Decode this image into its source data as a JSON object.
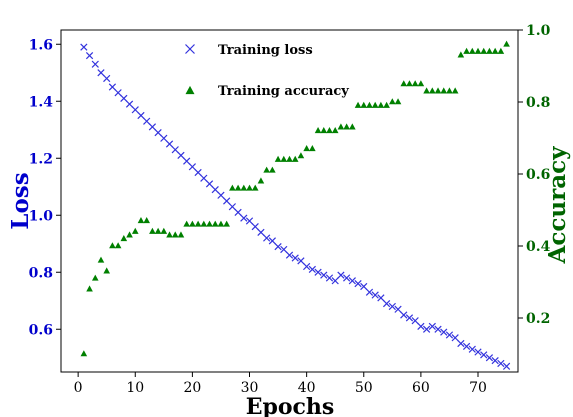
{
  "chart_data": {
    "type": "line",
    "xlabel": "Epochs",
    "ylabel_left": "Loss",
    "ylabel_right": "Accuracy",
    "xlim": [
      -3,
      77
    ],
    "ylim_left": [
      0.45,
      1.65
    ],
    "ylim_right": [
      0.05,
      1.0
    ],
    "x_ticks": [
      0,
      10,
      20,
      30,
      40,
      50,
      60,
      70
    ],
    "y_ticks_left": [
      0.6,
      0.8,
      1.0,
      1.2,
      1.4,
      1.6
    ],
    "y_ticks_right": [
      0.2,
      0.4,
      0.6,
      0.8,
      1.0
    ],
    "y_tick_labels_left": [
      "0.6",
      "0.8",
      "1.0",
      "1.2",
      "1.4",
      "1.6"
    ],
    "y_tick_labels_right": [
      "0.2",
      "0.4",
      "0.6",
      "0.8",
      "1.0"
    ],
    "legend_position": "top-center",
    "grid": false,
    "colors": {
      "loss": "#3333dd",
      "accuracy": "#008000",
      "left_axis": "#0000cc",
      "right_axis": "#006400"
    },
    "series": [
      {
        "name": "Training loss",
        "axis": "left",
        "marker": "x",
        "x": [
          1,
          2,
          3,
          4,
          5,
          6,
          7,
          8,
          9,
          10,
          11,
          12,
          13,
          14,
          15,
          16,
          17,
          18,
          19,
          20,
          21,
          22,
          23,
          24,
          25,
          26,
          27,
          28,
          29,
          30,
          31,
          32,
          33,
          34,
          35,
          36,
          37,
          38,
          39,
          40,
          41,
          42,
          43,
          44,
          45,
          46,
          47,
          48,
          49,
          50,
          51,
          52,
          53,
          54,
          55,
          56,
          57,
          58,
          59,
          60,
          61,
          62,
          63,
          64,
          65,
          66,
          67,
          68,
          69,
          70,
          71,
          72,
          73,
          74,
          75
        ],
        "values": [
          1.59,
          1.56,
          1.53,
          1.5,
          1.48,
          1.45,
          1.43,
          1.41,
          1.39,
          1.37,
          1.35,
          1.33,
          1.31,
          1.29,
          1.27,
          1.25,
          1.23,
          1.21,
          1.19,
          1.17,
          1.15,
          1.13,
          1.11,
          1.09,
          1.07,
          1.05,
          1.03,
          1.01,
          0.99,
          0.98,
          0.96,
          0.94,
          0.92,
          0.91,
          0.89,
          0.88,
          0.86,
          0.85,
          0.84,
          0.82,
          0.81,
          0.8,
          0.79,
          0.78,
          0.77,
          0.79,
          0.78,
          0.77,
          0.76,
          0.75,
          0.73,
          0.72,
          0.71,
          0.69,
          0.68,
          0.67,
          0.65,
          0.64,
          0.63,
          0.61,
          0.6,
          0.61,
          0.6,
          0.59,
          0.58,
          0.57,
          0.55,
          0.54,
          0.53,
          0.52,
          0.51,
          0.5,
          0.49,
          0.48,
          0.47
        ]
      },
      {
        "name": "Training accuracy",
        "axis": "right",
        "marker": "triangle",
        "x": [
          1,
          2,
          3,
          4,
          5,
          6,
          7,
          8,
          9,
          10,
          11,
          12,
          13,
          14,
          15,
          16,
          17,
          18,
          19,
          20,
          21,
          22,
          23,
          24,
          25,
          26,
          27,
          28,
          29,
          30,
          31,
          32,
          33,
          34,
          35,
          36,
          37,
          38,
          39,
          40,
          41,
          42,
          43,
          44,
          45,
          46,
          47,
          48,
          49,
          50,
          51,
          52,
          53,
          54,
          55,
          56,
          57,
          58,
          59,
          60,
          61,
          62,
          63,
          64,
          65,
          66,
          67,
          68,
          69,
          70,
          71,
          72,
          73,
          74,
          75
        ],
        "values": [
          0.1,
          0.28,
          0.31,
          0.36,
          0.33,
          0.4,
          0.4,
          0.42,
          0.43,
          0.44,
          0.47,
          0.47,
          0.44,
          0.44,
          0.44,
          0.43,
          0.43,
          0.43,
          0.46,
          0.46,
          0.46,
          0.46,
          0.46,
          0.46,
          0.46,
          0.46,
          0.56,
          0.56,
          0.56,
          0.56,
          0.56,
          0.58,
          0.61,
          0.61,
          0.64,
          0.64,
          0.64,
          0.64,
          0.65,
          0.67,
          0.67,
          0.72,
          0.72,
          0.72,
          0.72,
          0.73,
          0.73,
          0.73,
          0.79,
          0.79,
          0.79,
          0.79,
          0.79,
          0.79,
          0.8,
          0.8,
          0.85,
          0.85,
          0.85,
          0.85,
          0.83,
          0.83,
          0.83,
          0.83,
          0.83,
          0.83,
          0.93,
          0.94,
          0.94,
          0.94,
          0.94,
          0.94,
          0.94,
          0.94,
          0.96
        ]
      }
    ]
  }
}
